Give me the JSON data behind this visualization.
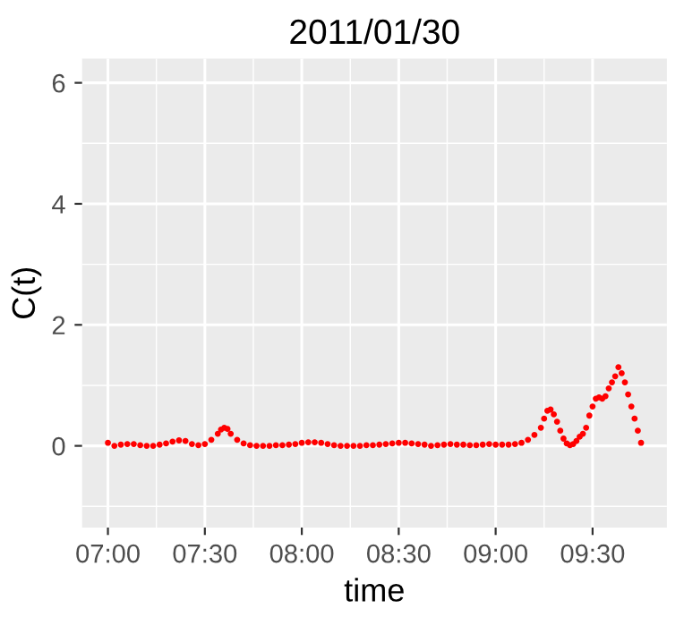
{
  "chart_data": {
    "type": "scatter",
    "title": "2011/01/30",
    "xlabel": "time",
    "ylabel": "C(t)",
    "xlim": [
      "2011-01-30T06:52",
      "2011-01-30T09:53"
    ],
    "xticks": [
      {
        "value": "2011-01-30T07:00",
        "label": "07:00"
      },
      {
        "value": "2011-01-30T07:30",
        "label": "07:30"
      },
      {
        "value": "2011-01-30T08:00",
        "label": "08:00"
      },
      {
        "value": "2011-01-30T08:30",
        "label": "08:30"
      },
      {
        "value": "2011-01-30T09:00",
        "label": "09:00"
      },
      {
        "value": "2011-01-30T09:30",
        "label": "09:30"
      }
    ],
    "ylim": [
      -1.35,
      6.4
    ],
    "yticks": [
      0,
      2,
      4,
      6
    ],
    "grid": true,
    "marker": "circle",
    "series": [
      {
        "color": "#ff0000",
        "x": [
          "2011-01-30T07:00",
          "2011-01-30T07:02",
          "2011-01-30T07:04",
          "2011-01-30T07:06",
          "2011-01-30T07:08",
          "2011-01-30T07:10",
          "2011-01-30T07:12",
          "2011-01-30T07:14",
          "2011-01-30T07:16",
          "2011-01-30T07:18",
          "2011-01-30T07:20",
          "2011-01-30T07:22",
          "2011-01-30T07:24",
          "2011-01-30T07:26",
          "2011-01-30T07:28",
          "2011-01-30T07:30",
          "2011-01-30T07:32",
          "2011-01-30T07:34",
          "2011-01-30T07:35",
          "2011-01-30T07:36",
          "2011-01-30T07:37",
          "2011-01-30T07:38",
          "2011-01-30T07:40",
          "2011-01-30T07:42",
          "2011-01-30T07:44",
          "2011-01-30T07:46",
          "2011-01-30T07:48",
          "2011-01-30T07:50",
          "2011-01-30T07:52",
          "2011-01-30T07:54",
          "2011-01-30T07:56",
          "2011-01-30T07:58",
          "2011-01-30T08:00",
          "2011-01-30T08:02",
          "2011-01-30T08:04",
          "2011-01-30T08:06",
          "2011-01-30T08:08",
          "2011-01-30T08:10",
          "2011-01-30T08:12",
          "2011-01-30T08:14",
          "2011-01-30T08:16",
          "2011-01-30T08:18",
          "2011-01-30T08:20",
          "2011-01-30T08:22",
          "2011-01-30T08:24",
          "2011-01-30T08:26",
          "2011-01-30T08:28",
          "2011-01-30T08:30",
          "2011-01-30T08:32",
          "2011-01-30T08:34",
          "2011-01-30T08:36",
          "2011-01-30T08:38",
          "2011-01-30T08:40",
          "2011-01-30T08:42",
          "2011-01-30T08:44",
          "2011-01-30T08:46",
          "2011-01-30T08:48",
          "2011-01-30T08:50",
          "2011-01-30T08:52",
          "2011-01-30T08:54",
          "2011-01-30T08:56",
          "2011-01-30T08:58",
          "2011-01-30T09:00",
          "2011-01-30T09:02",
          "2011-01-30T09:04",
          "2011-01-30T09:06",
          "2011-01-30T09:08",
          "2011-01-30T09:10",
          "2011-01-30T09:12",
          "2011-01-30T09:14",
          "2011-01-30T09:15",
          "2011-01-30T09:16",
          "2011-01-30T09:17",
          "2011-01-30T09:18",
          "2011-01-30T09:19",
          "2011-01-30T09:20",
          "2011-01-30T09:21",
          "2011-01-30T09:22",
          "2011-01-30T09:23",
          "2011-01-30T09:24",
          "2011-01-30T09:25",
          "2011-01-30T09:26",
          "2011-01-30T09:27",
          "2011-01-30T09:28",
          "2011-01-30T09:29",
          "2011-01-30T09:30",
          "2011-01-30T09:31",
          "2011-01-30T09:32",
          "2011-01-30T09:33",
          "2011-01-30T09:34",
          "2011-01-30T09:35",
          "2011-01-30T09:36",
          "2011-01-30T09:37",
          "2011-01-30T09:38",
          "2011-01-30T09:39",
          "2011-01-30T09:40",
          "2011-01-30T09:41",
          "2011-01-30T09:42",
          "2011-01-30T09:43",
          "2011-01-30T09:44",
          "2011-01-30T09:45"
        ],
        "values": [
          0.05,
          0.0,
          0.02,
          0.03,
          0.03,
          0.01,
          0.0,
          0.0,
          0.02,
          0.04,
          0.07,
          0.09,
          0.08,
          0.03,
          0.01,
          0.03,
          0.1,
          0.2,
          0.27,
          0.3,
          0.28,
          0.2,
          0.1,
          0.04,
          0.01,
          0.0,
          0.0,
          0.0,
          0.01,
          0.01,
          0.02,
          0.03,
          0.05,
          0.06,
          0.06,
          0.05,
          0.03,
          0.01,
          0.0,
          0.0,
          0.0,
          0.0,
          0.01,
          0.01,
          0.02,
          0.03,
          0.04,
          0.05,
          0.05,
          0.04,
          0.03,
          0.02,
          0.0,
          0.01,
          0.02,
          0.03,
          0.02,
          0.02,
          0.01,
          0.01,
          0.02,
          0.03,
          0.02,
          0.02,
          0.02,
          0.03,
          0.05,
          0.1,
          0.18,
          0.3,
          0.45,
          0.58,
          0.6,
          0.52,
          0.4,
          0.25,
          0.12,
          0.04,
          0.01,
          0.03,
          0.08,
          0.15,
          0.2,
          0.3,
          0.5,
          0.65,
          0.78,
          0.8,
          0.78,
          0.82,
          0.95,
          1.05,
          1.15,
          1.3,
          1.2,
          1.05,
          0.85,
          0.65,
          0.45,
          0.25,
          0.05
        ]
      }
    ]
  }
}
